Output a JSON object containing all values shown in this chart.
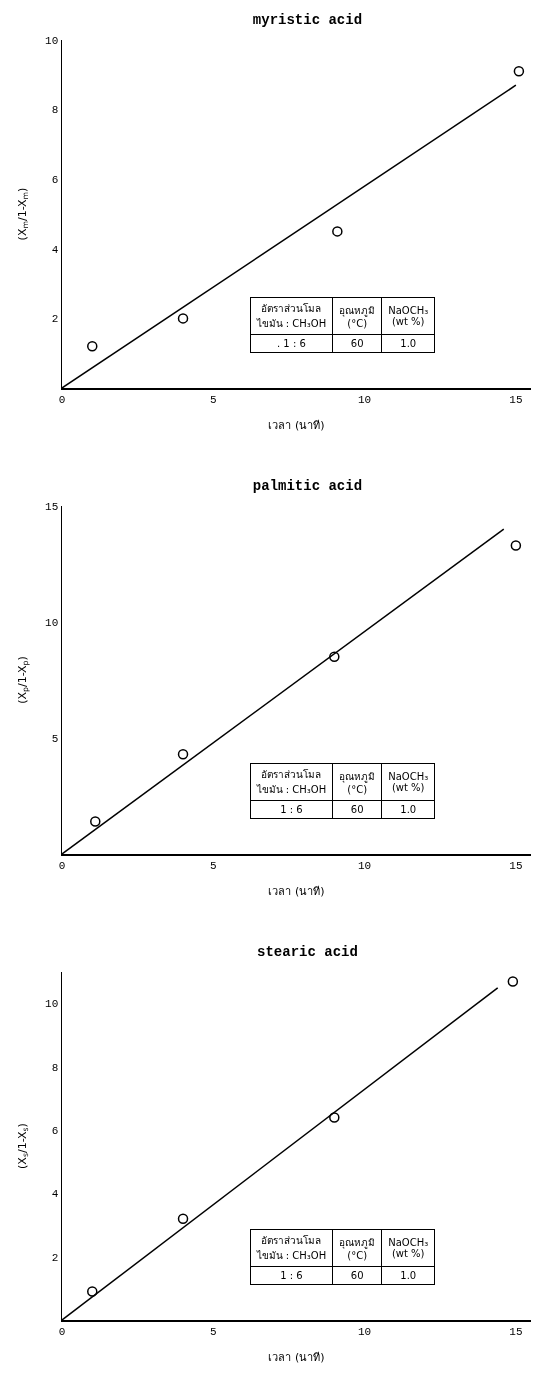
{
  "chart_data": [
    {
      "type": "scatter",
      "title": "myristic acid",
      "xlabel": "เวลา (นาที)",
      "ylabel": "(X$_{m}$/1-X$_{m}$)",
      "xlim": [
        0,
        15.5
      ],
      "ylim": [
        0,
        10
      ],
      "xticks": [
        0,
        5,
        10,
        15
      ],
      "yticks": [
        2,
        4,
        6,
        8,
        10
      ],
      "x": [
        1.0,
        4.0,
        9.1,
        15.1
      ],
      "series": [
        {
          "color": "#000000",
          "marker": "circle",
          "values": [
            1.2,
            2.0,
            4.5,
            9.1
          ]
        },
        {
          "type": "line",
          "color": "#000000",
          "marker": "none",
          "x": [
            0,
            15
          ],
          "values": [
            0,
            8.7
          ]
        }
      ],
      "annotations": [
        "อัตราส่วนโมล\nไขมัน : CH₃OH",
        "อุณหภูมิ\n(°C)",
        "NaOCH₃\n(wt %)",
        ". 1 : 6",
        "60",
        "1.0"
      ]
    },
    {
      "type": "scatter",
      "title": "palmitic acid",
      "xlabel": "เวลา (นาที)",
      "ylabel": "(X$_{p}$/1-X$_{p}$)",
      "xlim": [
        0,
        15.5
      ],
      "ylim": [
        0,
        15
      ],
      "xticks": [
        0,
        5,
        10,
        15
      ],
      "yticks": [
        5,
        10,
        15
      ],
      "x": [
        1.1,
        4.0,
        9.0,
        15.0
      ],
      "series": [
        {
          "color": "#000000",
          "marker": "circle",
          "values": [
            1.4,
            4.3,
            8.5,
            13.3
          ]
        },
        {
          "type": "line",
          "color": "#000000",
          "marker": "none",
          "x": [
            0,
            14.6
          ],
          "values": [
            0,
            14.0
          ]
        }
      ],
      "annotations": [
        "อัตราส่วนโมล\nไขมัน : CH₃OH",
        "อุณหภูมิ\n(°C)",
        "NaOCH₃\n(wt %)",
        "1 : 6",
        "60",
        "1.0"
      ]
    },
    {
      "type": "scatter",
      "title": "stearic acid",
      "xlabel": "เวลา (นาที)",
      "ylabel": "(X$_{s}$/1-X$_{s}$)",
      "xlim": [
        0,
        15.5
      ],
      "ylim": [
        0,
        11
      ],
      "xticks": [
        0,
        5,
        10,
        15
      ],
      "yticks": [
        2,
        4,
        6,
        8,
        10
      ],
      "x": [
        1.0,
        4.0,
        9.0,
        14.9
      ],
      "series": [
        {
          "color": "#000000",
          "marker": "circle",
          "values": [
            0.9,
            3.2,
            6.4,
            10.7
          ]
        },
        {
          "type": "line",
          "color": "#000000",
          "marker": "none",
          "x": [
            0,
            14.4
          ],
          "values": [
            0,
            10.5
          ]
        }
      ],
      "annotations": [
        "อัตราส่วนโมล\nไขมัน : CH₃OH",
        "อุณหภูมิ\n(°C)",
        "NaOCH₃\n(wt %)",
        "1 : 6",
        "60",
        "1.0"
      ]
    }
  ]
}
